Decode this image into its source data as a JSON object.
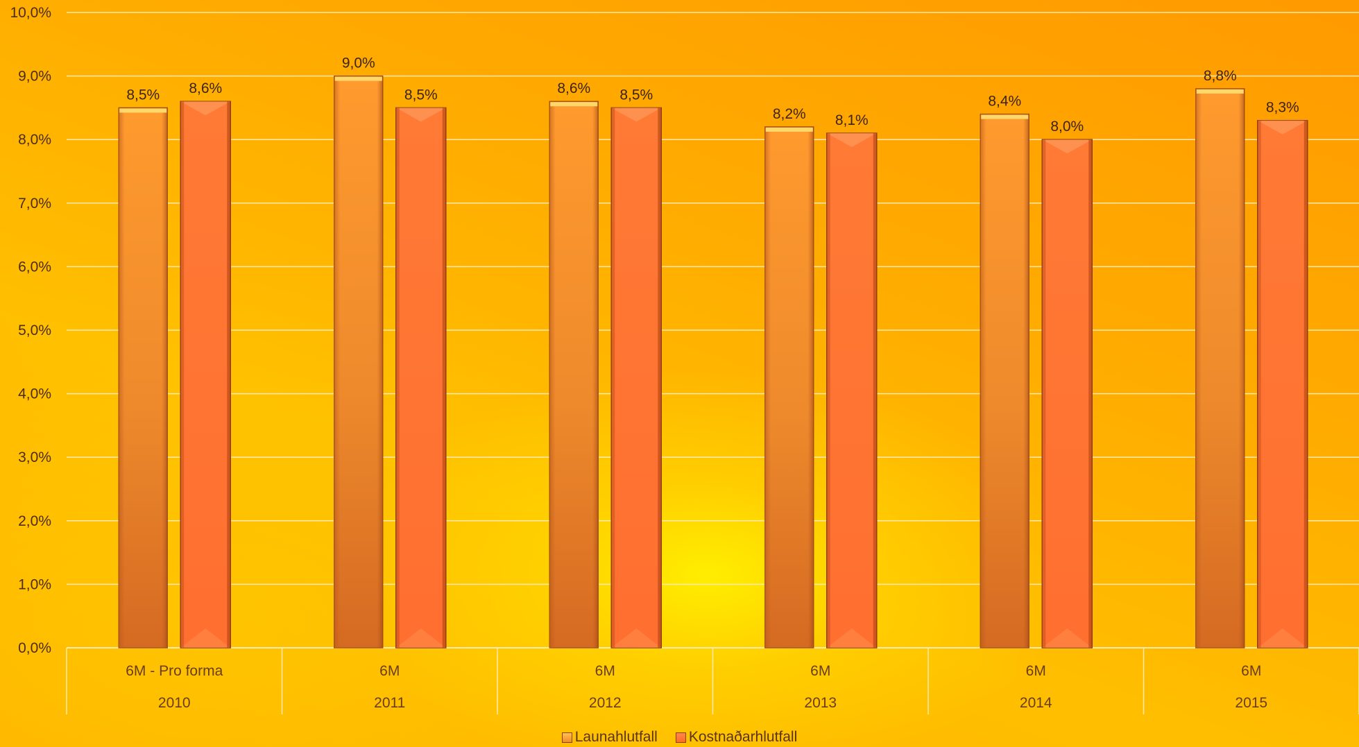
{
  "chart_data": {
    "type": "bar",
    "categories": [
      {
        "period": "6M - Pro forma",
        "year": "2010"
      },
      {
        "period": "6M",
        "year": "2011"
      },
      {
        "period": "6M",
        "year": "2012"
      },
      {
        "period": "6M",
        "year": "2013"
      },
      {
        "period": "6M",
        "year": "2014"
      },
      {
        "period": "6M",
        "year": "2015"
      }
    ],
    "series": [
      {
        "name": "Launahlutfall",
        "color": "#f28a2c",
        "values": [
          8.5,
          9.0,
          8.6,
          8.2,
          8.4,
          8.8
        ],
        "labels": [
          "8,5%",
          "9,0%",
          "8,6%",
          "8,2%",
          "8,4%",
          "8,8%"
        ]
      },
      {
        "name": "Kostnaðarhlutfall",
        "color": "#ff7433",
        "values": [
          8.6,
          8.5,
          8.5,
          8.1,
          8.0,
          8.3
        ],
        "labels": [
          "8,6%",
          "8,5%",
          "8,5%",
          "8,1%",
          "8,0%",
          "8,3%"
        ]
      }
    ],
    "ylim": [
      0,
      10
    ],
    "yticks": [
      "0,0%",
      "1,0%",
      "2,0%",
      "3,0%",
      "4,0%",
      "5,0%",
      "6,0%",
      "7,0%",
      "8,0%",
      "9,0%",
      "10,0%"
    ],
    "grid": true,
    "legend_position": "bottom"
  }
}
